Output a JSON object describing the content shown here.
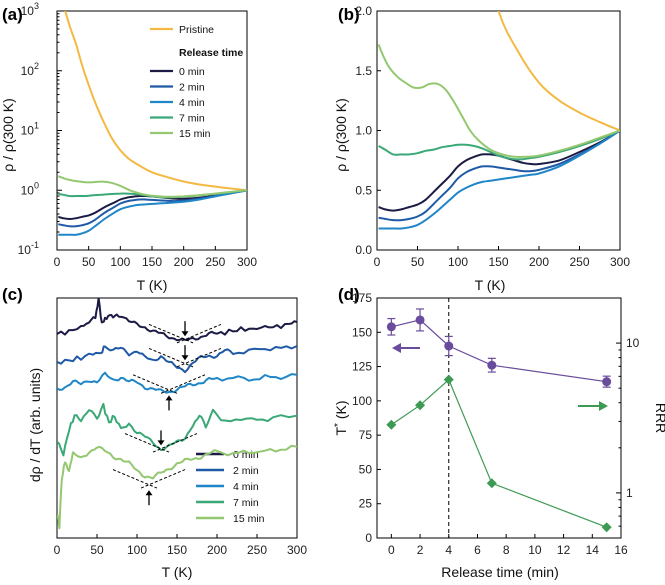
{
  "colors": {
    "pristine": "#f4b942",
    "c0": "#1b1b45",
    "c2": "#1f5aa6",
    "c4": "#1f86c7",
    "c7": "#3aa877",
    "c15": "#94c870",
    "purple": "#6a4c9c",
    "green": "#3d9a53"
  },
  "chart_data": [
    {
      "id": "a",
      "panel_label": "(a)",
      "type": "line",
      "yscale": "log",
      "xlabel": "T (K)",
      "ylabel": "ρ / ρ(300 K)",
      "xlim": [
        0,
        300
      ],
      "ylim": [
        0.1,
        1000
      ],
      "xticks": [
        "0",
        "50",
        "100",
        "150",
        "200",
        "250",
        "300"
      ],
      "yticks": [
        {
          "base": "10",
          "exp": "-1"
        },
        {
          "base": "10",
          "exp": "0"
        },
        {
          "base": "10",
          "exp": "1"
        },
        {
          "base": "10",
          "exp": "2"
        },
        {
          "base": "10",
          "exp": "3"
        }
      ],
      "legend_pristine": "Pristine",
      "legend_title": "Release time",
      "legend_items": [
        "0 min",
        "2 min",
        "4 min",
        "7 min",
        "15 min"
      ],
      "series": [
        {
          "name": "Pristine",
          "color": "pristine",
          "x": [
            13,
            20,
            30,
            40,
            50,
            60,
            75,
            90,
            110,
            130,
            150,
            175,
            200,
            225,
            250,
            275,
            300
          ],
          "y": [
            1000,
            560,
            280,
            120,
            58,
            30,
            13,
            6.5,
            3.6,
            2.6,
            2.0,
            1.65,
            1.4,
            1.25,
            1.15,
            1.07,
            1.0
          ]
        },
        {
          "name": "0 min",
          "color": "c0",
          "x": [
            2,
            10,
            20,
            30,
            40,
            50,
            60,
            75,
            90,
            100,
            110,
            120,
            130,
            140,
            150,
            160,
            170,
            180,
            190,
            200,
            225,
            250,
            275,
            300
          ],
          "y": [
            0.36,
            0.34,
            0.33,
            0.34,
            0.36,
            0.38,
            0.42,
            0.52,
            0.62,
            0.7,
            0.75,
            0.78,
            0.8,
            0.8,
            0.79,
            0.77,
            0.75,
            0.73,
            0.72,
            0.72,
            0.75,
            0.82,
            0.9,
            1.0
          ]
        },
        {
          "name": "2 min",
          "color": "c2",
          "x": [
            2,
            10,
            20,
            30,
            40,
            50,
            60,
            75,
            90,
            100,
            110,
            120,
            130,
            140,
            150,
            160,
            170,
            180,
            190,
            200,
            225,
            250,
            275,
            300
          ],
          "y": [
            0.27,
            0.26,
            0.25,
            0.25,
            0.26,
            0.28,
            0.32,
            0.42,
            0.52,
            0.6,
            0.65,
            0.68,
            0.7,
            0.7,
            0.69,
            0.68,
            0.67,
            0.66,
            0.66,
            0.67,
            0.72,
            0.8,
            0.89,
            1.0
          ]
        },
        {
          "name": "4 min",
          "color": "c4",
          "x": [
            2,
            10,
            20,
            30,
            40,
            50,
            60,
            75,
            90,
            100,
            110,
            120,
            130,
            140,
            150,
            160,
            170,
            180,
            190,
            200,
            225,
            250,
            275,
            300
          ],
          "y": [
            0.18,
            0.18,
            0.18,
            0.18,
            0.19,
            0.21,
            0.25,
            0.33,
            0.42,
            0.48,
            0.52,
            0.55,
            0.57,
            0.58,
            0.59,
            0.6,
            0.61,
            0.62,
            0.63,
            0.64,
            0.7,
            0.79,
            0.89,
            1.0
          ]
        },
        {
          "name": "7 min",
          "color": "c7",
          "x": [
            2,
            10,
            20,
            30,
            40,
            50,
            60,
            70,
            80,
            90,
            100,
            110,
            120,
            130,
            140,
            150,
            160,
            170,
            180,
            190,
            200,
            225,
            250,
            275,
            300
          ],
          "y": [
            0.87,
            0.84,
            0.8,
            0.8,
            0.8,
            0.81,
            0.83,
            0.84,
            0.86,
            0.87,
            0.88,
            0.88,
            0.87,
            0.85,
            0.82,
            0.79,
            0.77,
            0.76,
            0.76,
            0.77,
            0.78,
            0.82,
            0.87,
            0.93,
            1.0
          ]
        },
        {
          "name": "15 min",
          "color": "c15",
          "x": [
            2,
            8,
            15,
            25,
            35,
            45,
            55,
            65,
            75,
            85,
            95,
            105,
            115,
            125,
            140,
            155,
            170,
            185,
            200,
            225,
            250,
            275,
            300
          ],
          "y": [
            1.72,
            1.62,
            1.53,
            1.45,
            1.4,
            1.36,
            1.36,
            1.39,
            1.39,
            1.34,
            1.24,
            1.12,
            1.0,
            0.92,
            0.84,
            0.8,
            0.78,
            0.78,
            0.79,
            0.83,
            0.88,
            0.94,
            1.0
          ]
        }
      ]
    },
    {
      "id": "b",
      "panel_label": "(b)",
      "type": "line",
      "yscale": "linear",
      "xlabel": "T (K)",
      "ylabel": "ρ / ρ(300 K)",
      "xlim": [
        0,
        300
      ],
      "ylim": [
        0.0,
        2.0
      ],
      "xticks": [
        "0",
        "50",
        "100",
        "150",
        "200",
        "250",
        "300"
      ],
      "yticks": [
        "0.0",
        "0.5",
        "1.0",
        "1.5",
        "2.0"
      ],
      "series_ref": "a"
    },
    {
      "id": "c",
      "panel_label": "(c)",
      "type": "line",
      "xlabel": "T (K)",
      "ylabel": "dρ / dT (arb. units)",
      "xlim": [
        0,
        300
      ],
      "xticks": [
        "0",
        "50",
        "100",
        "150",
        "200",
        "250",
        "300"
      ],
      "legend_items": [
        "0 min",
        "2 min",
        "4 min",
        "7 min",
        "15 min"
      ],
      "series": [
        {
          "name": "0 min",
          "color": "c0",
          "offset": 0.83,
          "x": [
            0,
            15,
            30,
            40,
            48,
            52,
            56,
            60,
            66,
            72,
            80,
            90,
            100,
            110,
            120,
            130,
            140,
            150,
            160,
            170,
            180,
            190,
            200,
            215,
            230,
            245,
            260,
            275,
            290,
            300
          ],
          "y": [
            0.02,
            0.03,
            0.05,
            0.07,
            0.09,
            0.17,
            0.06,
            0.08,
            0.1,
            0.09,
            0.1,
            0.07,
            0.06,
            0.05,
            0.03,
            0.02,
            0.01,
            0.0,
            -0.01,
            0.0,
            0.01,
            0.02,
            0.02,
            0.03,
            0.04,
            0.04,
            0.05,
            0.05,
            0.06,
            0.07
          ]
        },
        {
          "name": "2 min",
          "color": "c2",
          "offset": 0.73,
          "x": [
            0,
            15,
            30,
            45,
            55,
            60,
            70,
            80,
            90,
            100,
            110,
            120,
            130,
            140,
            150,
            160,
            170,
            180,
            190,
            200,
            210,
            220,
            240,
            260,
            280,
            300
          ],
          "y": [
            0.0,
            0.01,
            0.02,
            0.04,
            0.04,
            0.07,
            0.05,
            0.06,
            0.04,
            0.05,
            0.02,
            0.01,
            0.03,
            0.0,
            -0.02,
            -0.03,
            0.0,
            0.02,
            0.03,
            0.03,
            0.05,
            0.04,
            0.05,
            0.06,
            0.06,
            0.07
          ]
        },
        {
          "name": "4 min",
          "color": "c4",
          "offset": 0.62,
          "x": [
            0,
            10,
            20,
            30,
            40,
            50,
            60,
            70,
            80,
            90,
            100,
            110,
            120,
            130,
            140,
            150,
            160,
            170,
            180,
            190,
            200,
            220,
            240,
            260,
            280,
            300
          ],
          "y": [
            0.0,
            0.01,
            0.03,
            0.02,
            0.04,
            0.03,
            0.06,
            0.04,
            0.05,
            0.03,
            0.03,
            0.01,
            0.0,
            -0.01,
            -0.01,
            0.0,
            0.01,
            0.02,
            0.03,
            0.04,
            0.04,
            0.05,
            0.04,
            0.05,
            0.05,
            0.06
          ]
        },
        {
          "name": "7 min",
          "color": "c7",
          "offset": 0.45,
          "x": [
            0,
            8,
            15,
            22,
            30,
            40,
            50,
            58,
            65,
            72,
            80,
            90,
            100,
            110,
            120,
            130,
            140,
            150,
            160,
            170,
            178,
            186,
            195,
            210,
            230,
            250,
            270,
            300
          ],
          "y": [
            -0.05,
            -0.1,
            0.0,
            0.06,
            0.04,
            0.08,
            0.05,
            0.1,
            0.03,
            0.06,
            0.0,
            0.03,
            -0.01,
            -0.03,
            -0.05,
            -0.08,
            -0.07,
            -0.05,
            -0.03,
            0.02,
            0.06,
            0.02,
            0.08,
            0.03,
            0.05,
            0.04,
            0.05,
            0.06
          ]
        },
        {
          "name": "15 min",
          "color": "c15",
          "offset": 0.3,
          "x": [
            0,
            3,
            6,
            10,
            15,
            20,
            30,
            40,
            50,
            60,
            70,
            80,
            90,
            100,
            110,
            120,
            130,
            140,
            150,
            160,
            170,
            180,
            190,
            200,
            220,
            240,
            260,
            280,
            300
          ],
          "y": [
            -0.2,
            -0.25,
            -0.05,
            0.02,
            -0.02,
            0.05,
            0.03,
            0.06,
            0.08,
            0.06,
            0.04,
            0.03,
            0.01,
            -0.02,
            -0.04,
            -0.05,
            -0.03,
            -0.01,
            0.01,
            0.02,
            0.03,
            0.04,
            0.05,
            0.06,
            0.05,
            0.06,
            0.06,
            0.07,
            0.08
          ]
        }
      ],
      "arrows_T": [
        160,
        160,
        140,
        130,
        115
      ]
    },
    {
      "id": "d",
      "panel_label": "(d)",
      "type": "scatter",
      "xlabel": "Release time (min)",
      "ylabel_left": "T",
      "ylabel_left_sup": "*",
      "ylabel_left_unit": " (K)",
      "ylabel_right": "RRR",
      "xlim": [
        -1,
        16
      ],
      "ylim": [
        0,
        175
      ],
      "xticks": [
        "0",
        "2",
        "4",
        "6",
        "8",
        "10",
        "12",
        "14",
        "16"
      ],
      "yticks": [
        "0",
        "25",
        "50",
        "75",
        "100",
        "125",
        "150",
        "175"
      ],
      "y2ticks": [
        "1",
        "10"
      ],
      "y2lim": [
        0.5,
        20
      ],
      "vline_x": 4,
      "series": [
        {
          "name": "T*",
          "color": "purple",
          "marker": "circle",
          "x": [
            0,
            2,
            4,
            7,
            15
          ],
          "y": [
            154,
            159,
            140,
            126,
            114
          ],
          "yerr": [
            6,
            8,
            7,
            5,
            4
          ]
        },
        {
          "name": "RRR",
          "color": "green",
          "marker": "diamond",
          "axis": "right",
          "x": [
            0,
            2,
            4,
            7,
            15
          ],
          "y": [
            2.85,
            3.85,
            5.7,
            1.16,
            0.59
          ]
        }
      ]
    }
  ]
}
